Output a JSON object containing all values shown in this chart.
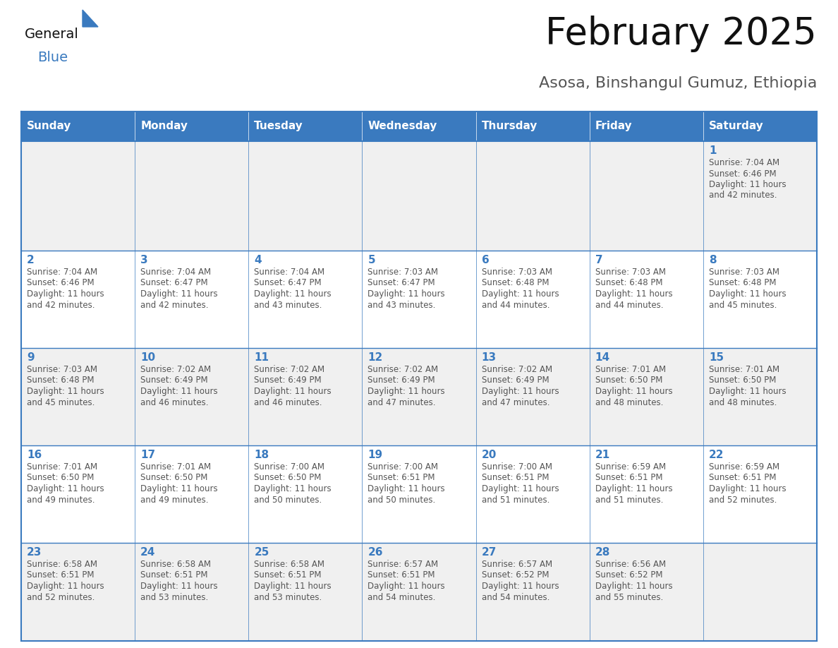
{
  "title": "February 2025",
  "subtitle": "Asosa, Binshangul Gumuz, Ethiopia",
  "days_of_week": [
    "Sunday",
    "Monday",
    "Tuesday",
    "Wednesday",
    "Thursday",
    "Friday",
    "Saturday"
  ],
  "header_bg": "#3a7abf",
  "header_text": "#ffffff",
  "cell_bg_odd": "#f0f0f0",
  "cell_bg_even": "#ffffff",
  "cell_border": "#3a7abf",
  "cell_border_light": "#cccccc",
  "day_number_color": "#3a7abf",
  "text_color": "#555555",
  "title_color": "#111111",
  "subtitle_color": "#555555",
  "logo_general_color": "#111111",
  "logo_blue_color": "#3a7abf",
  "calendar_data": [
    {
      "day": 1,
      "col": 6,
      "row": 0,
      "sunrise": "7:04 AM",
      "sunset": "6:46 PM",
      "daylight_hours": 11,
      "daylight_minutes": 42
    },
    {
      "day": 2,
      "col": 0,
      "row": 1,
      "sunrise": "7:04 AM",
      "sunset": "6:46 PM",
      "daylight_hours": 11,
      "daylight_minutes": 42
    },
    {
      "day": 3,
      "col": 1,
      "row": 1,
      "sunrise": "7:04 AM",
      "sunset": "6:47 PM",
      "daylight_hours": 11,
      "daylight_minutes": 42
    },
    {
      "day": 4,
      "col": 2,
      "row": 1,
      "sunrise": "7:04 AM",
      "sunset": "6:47 PM",
      "daylight_hours": 11,
      "daylight_minutes": 43
    },
    {
      "day": 5,
      "col": 3,
      "row": 1,
      "sunrise": "7:03 AM",
      "sunset": "6:47 PM",
      "daylight_hours": 11,
      "daylight_minutes": 43
    },
    {
      "day": 6,
      "col": 4,
      "row": 1,
      "sunrise": "7:03 AM",
      "sunset": "6:48 PM",
      "daylight_hours": 11,
      "daylight_minutes": 44
    },
    {
      "day": 7,
      "col": 5,
      "row": 1,
      "sunrise": "7:03 AM",
      "sunset": "6:48 PM",
      "daylight_hours": 11,
      "daylight_minutes": 44
    },
    {
      "day": 8,
      "col": 6,
      "row": 1,
      "sunrise": "7:03 AM",
      "sunset": "6:48 PM",
      "daylight_hours": 11,
      "daylight_minutes": 45
    },
    {
      "day": 9,
      "col": 0,
      "row": 2,
      "sunrise": "7:03 AM",
      "sunset": "6:48 PM",
      "daylight_hours": 11,
      "daylight_minutes": 45
    },
    {
      "day": 10,
      "col": 1,
      "row": 2,
      "sunrise": "7:02 AM",
      "sunset": "6:49 PM",
      "daylight_hours": 11,
      "daylight_minutes": 46
    },
    {
      "day": 11,
      "col": 2,
      "row": 2,
      "sunrise": "7:02 AM",
      "sunset": "6:49 PM",
      "daylight_hours": 11,
      "daylight_minutes": 46
    },
    {
      "day": 12,
      "col": 3,
      "row": 2,
      "sunrise": "7:02 AM",
      "sunset": "6:49 PM",
      "daylight_hours": 11,
      "daylight_minutes": 47
    },
    {
      "day": 13,
      "col": 4,
      "row": 2,
      "sunrise": "7:02 AM",
      "sunset": "6:49 PM",
      "daylight_hours": 11,
      "daylight_minutes": 47
    },
    {
      "day": 14,
      "col": 5,
      "row": 2,
      "sunrise": "7:01 AM",
      "sunset": "6:50 PM",
      "daylight_hours": 11,
      "daylight_minutes": 48
    },
    {
      "day": 15,
      "col": 6,
      "row": 2,
      "sunrise": "7:01 AM",
      "sunset": "6:50 PM",
      "daylight_hours": 11,
      "daylight_minutes": 48
    },
    {
      "day": 16,
      "col": 0,
      "row": 3,
      "sunrise": "7:01 AM",
      "sunset": "6:50 PM",
      "daylight_hours": 11,
      "daylight_minutes": 49
    },
    {
      "day": 17,
      "col": 1,
      "row": 3,
      "sunrise": "7:01 AM",
      "sunset": "6:50 PM",
      "daylight_hours": 11,
      "daylight_minutes": 49
    },
    {
      "day": 18,
      "col": 2,
      "row": 3,
      "sunrise": "7:00 AM",
      "sunset": "6:50 PM",
      "daylight_hours": 11,
      "daylight_minutes": 50
    },
    {
      "day": 19,
      "col": 3,
      "row": 3,
      "sunrise": "7:00 AM",
      "sunset": "6:51 PM",
      "daylight_hours": 11,
      "daylight_minutes": 50
    },
    {
      "day": 20,
      "col": 4,
      "row": 3,
      "sunrise": "7:00 AM",
      "sunset": "6:51 PM",
      "daylight_hours": 11,
      "daylight_minutes": 51
    },
    {
      "day": 21,
      "col": 5,
      "row": 3,
      "sunrise": "6:59 AM",
      "sunset": "6:51 PM",
      "daylight_hours": 11,
      "daylight_minutes": 51
    },
    {
      "day": 22,
      "col": 6,
      "row": 3,
      "sunrise": "6:59 AM",
      "sunset": "6:51 PM",
      "daylight_hours": 11,
      "daylight_minutes": 52
    },
    {
      "day": 23,
      "col": 0,
      "row": 4,
      "sunrise": "6:58 AM",
      "sunset": "6:51 PM",
      "daylight_hours": 11,
      "daylight_minutes": 52
    },
    {
      "day": 24,
      "col": 1,
      "row": 4,
      "sunrise": "6:58 AM",
      "sunset": "6:51 PM",
      "daylight_hours": 11,
      "daylight_minutes": 53
    },
    {
      "day": 25,
      "col": 2,
      "row": 4,
      "sunrise": "6:58 AM",
      "sunset": "6:51 PM",
      "daylight_hours": 11,
      "daylight_minutes": 53
    },
    {
      "day": 26,
      "col": 3,
      "row": 4,
      "sunrise": "6:57 AM",
      "sunset": "6:51 PM",
      "daylight_hours": 11,
      "daylight_minutes": 54
    },
    {
      "day": 27,
      "col": 4,
      "row": 4,
      "sunrise": "6:57 AM",
      "sunset": "6:52 PM",
      "daylight_hours": 11,
      "daylight_minutes": 54
    },
    {
      "day": 28,
      "col": 5,
      "row": 4,
      "sunrise": "6:56 AM",
      "sunset": "6:52 PM",
      "daylight_hours": 11,
      "daylight_minutes": 55
    }
  ]
}
